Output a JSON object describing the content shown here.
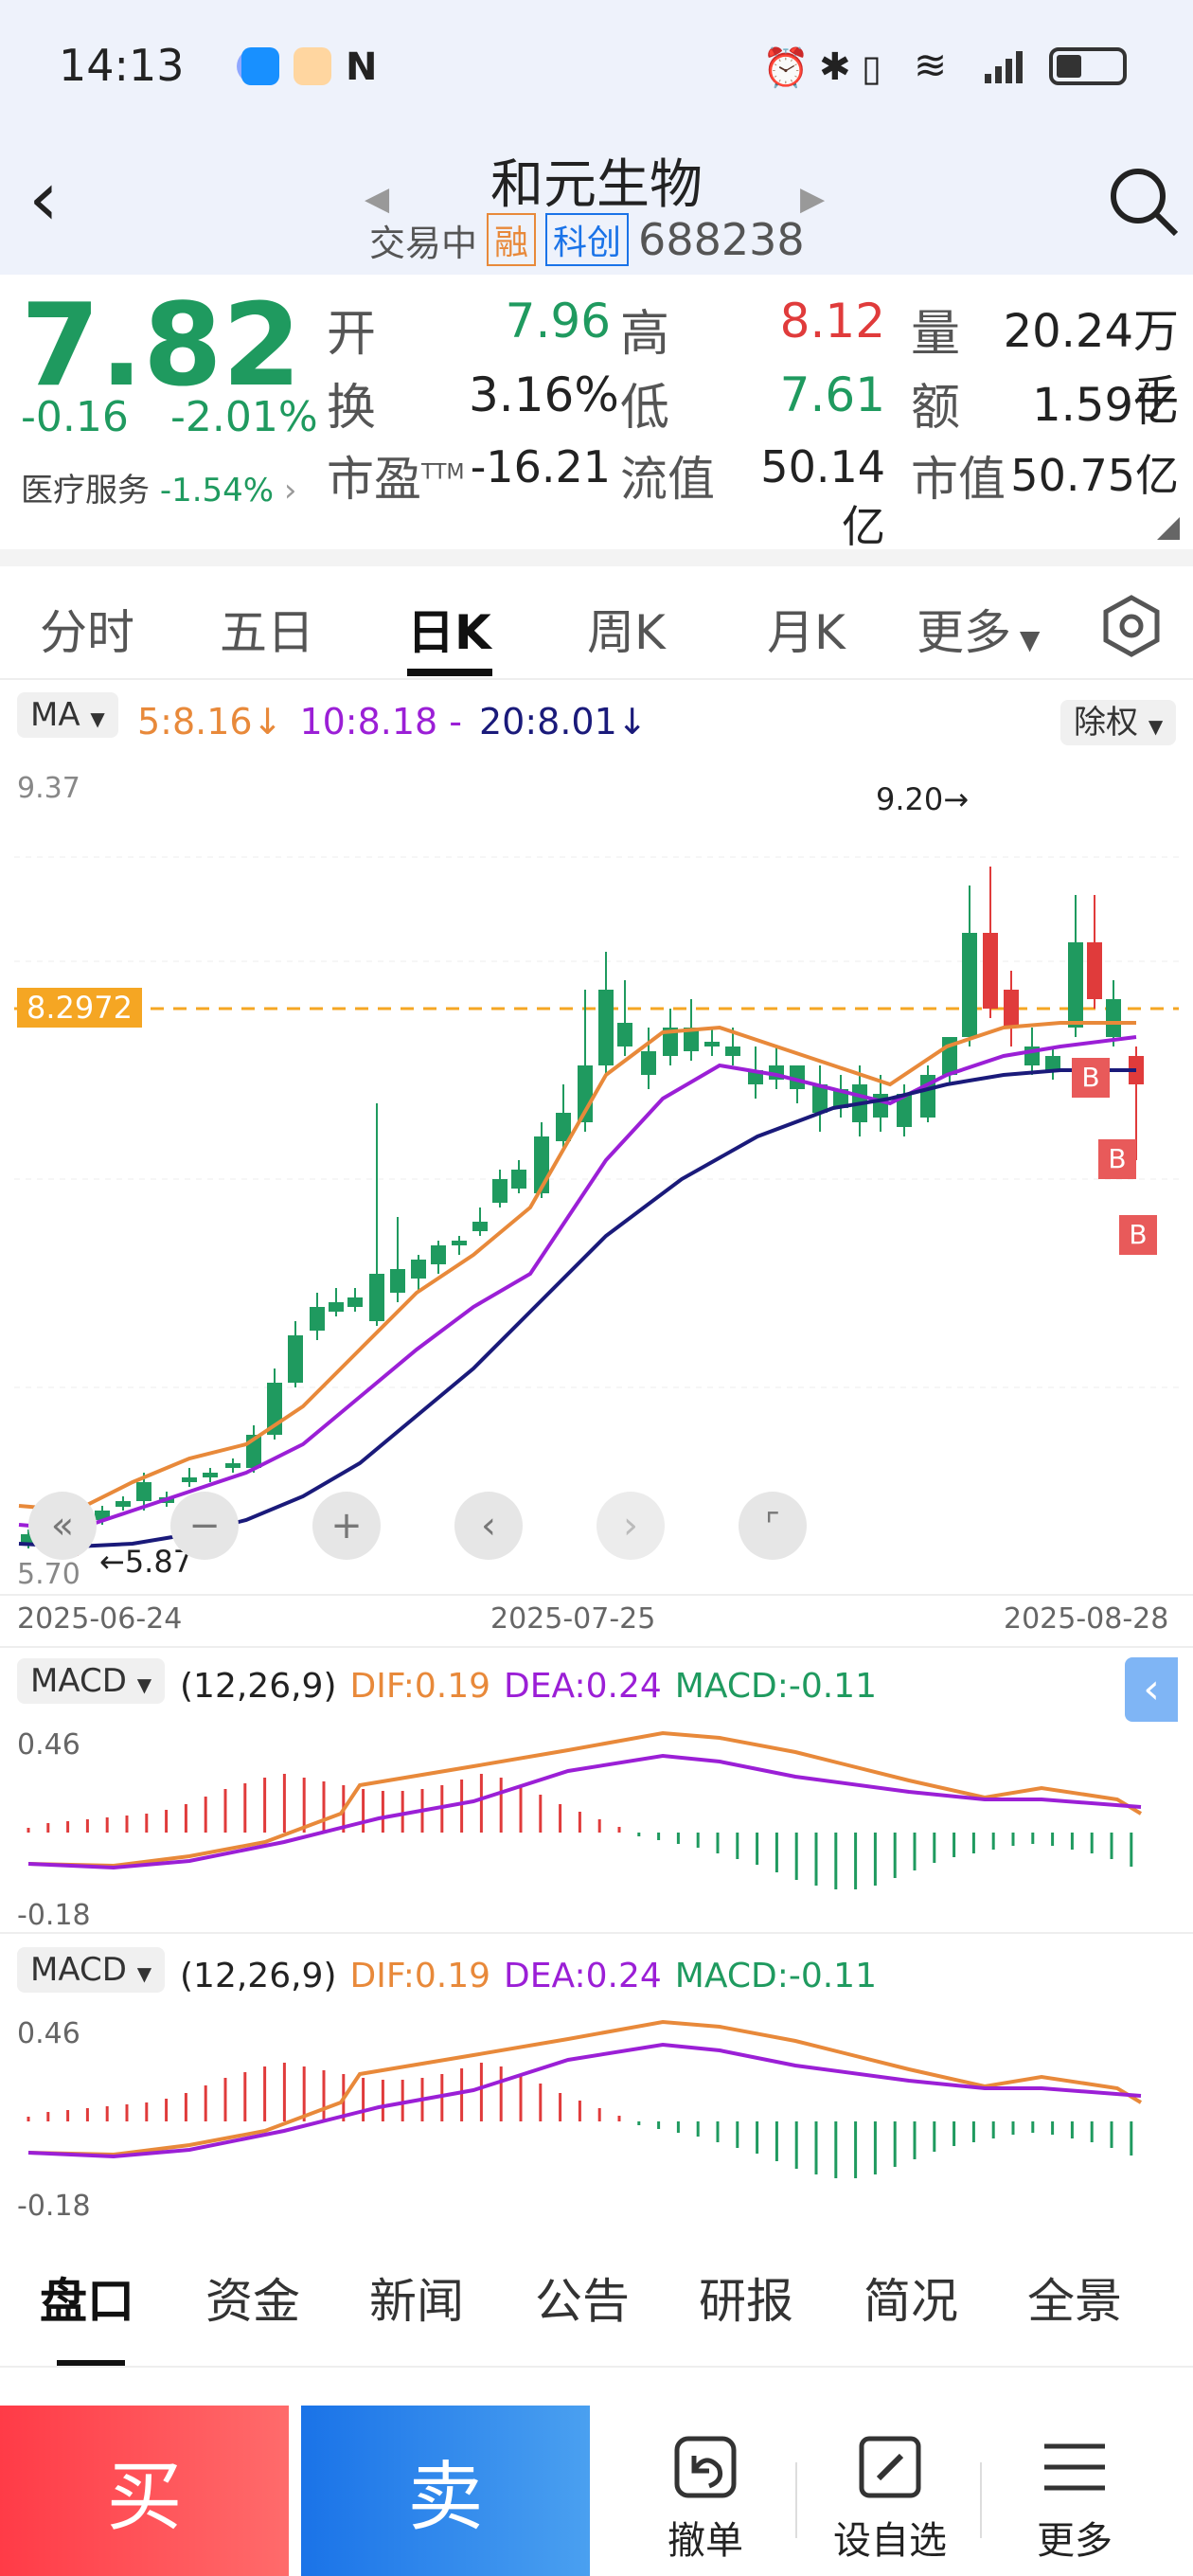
{
  "status": {
    "time": "14:13"
  },
  "header": {
    "name": "和元生物",
    "state": "交易中",
    "tag1": "融",
    "tag2": "科创",
    "code": "688238"
  },
  "quote": {
    "price": "7.82",
    "change": "-0.16",
    "change_pct": "-2.01%",
    "sector": "医疗服务",
    "sector_pct": "-1.54%",
    "rows": [
      [
        "开",
        "7.96",
        "高",
        "8.12",
        "量",
        "20.24万手"
      ],
      [
        "换",
        "3.16%",
        "低",
        "7.61",
        "额",
        "1.59亿"
      ],
      [
        "市盈",
        "-16.21",
        "流值",
        "50.14亿",
        "市值",
        "50.75亿"
      ]
    ],
    "pe_sup": "TTM"
  },
  "tabs": [
    "分时",
    "五日",
    "日K",
    "周K",
    "月K",
    "更多"
  ],
  "ma_bar": {
    "label": "MA",
    "ma5": "5:8.16",
    "ma10": "10:8.18 -",
    "ma20": "20:8.01",
    "adjust": "除权"
  },
  "kline": {
    "y_top": "9.37",
    "y_bottom": "5.70",
    "ref_price": "8.2972",
    "high_mark": "9.20",
    "low_mark": "5.87",
    "dates": [
      "2025-06-24",
      "2025-07-25",
      "2025-08-28"
    ]
  },
  "macd1": {
    "label": "MACD",
    "params": "(12,26,9)",
    "dif": "DIF:0.19",
    "dea": "DEA:0.24",
    "macd": "MACD:-0.11",
    "top": "0.46",
    "bottom": "-0.18"
  },
  "macd2": {
    "label": "MACD",
    "params": "(12,26,9)",
    "dif": "DIF:0.19",
    "dea": "DEA:0.24",
    "macd": "MACD:-0.11",
    "top": "0.46",
    "bottom": "-0.18"
  },
  "bottom_tabs": [
    "盘口",
    "资金",
    "新闻",
    "公告",
    "研报",
    "简况",
    "全景"
  ],
  "actions": {
    "buy": "买",
    "sell": "卖",
    "cancel": "撤单",
    "watch": "设自选",
    "more": "更多"
  },
  "colors": {
    "up": "#e03b3b",
    "down": "#1f9a5f",
    "ma5": "#e8893a",
    "ma10": "#9b1fd6",
    "ma20": "#1a1a7a"
  }
}
